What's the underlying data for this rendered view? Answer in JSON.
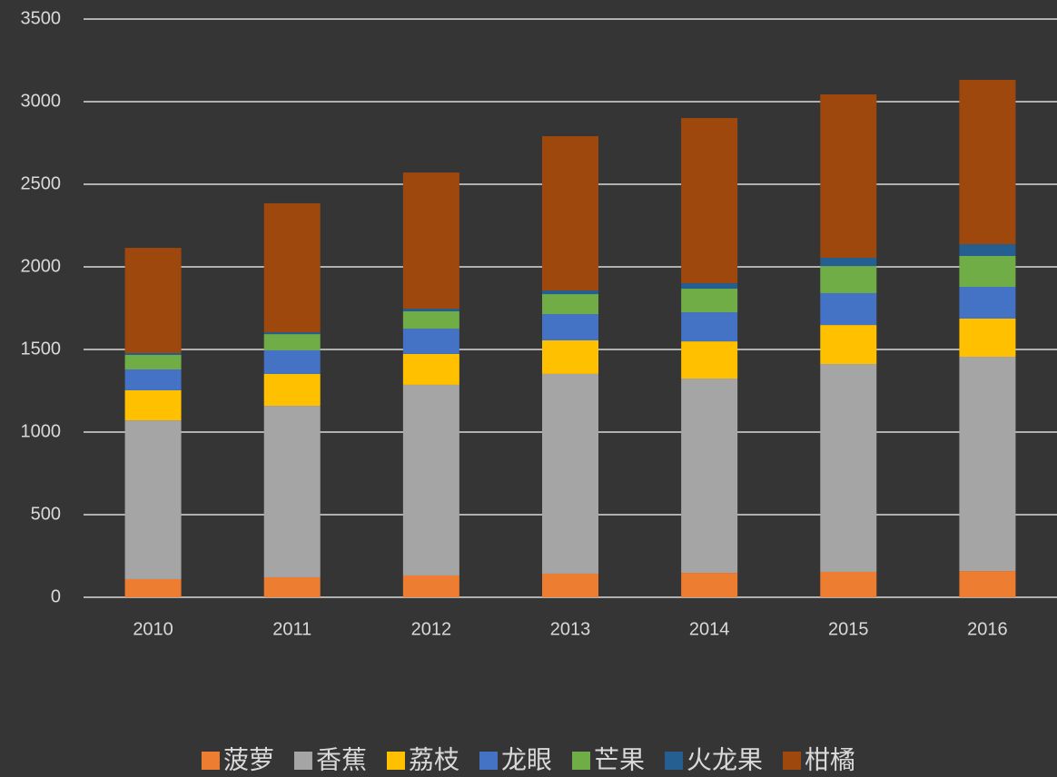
{
  "chart_data": {
    "type": "stacked_bar",
    "categories": [
      "2010",
      "2011",
      "2012",
      "2013",
      "2014",
      "2015",
      "2016"
    ],
    "series": [
      {
        "name": "菠萝",
        "color": "#ed7d31",
        "values": [
          110,
          121,
          132,
          143,
          148,
          154,
          159
        ]
      },
      {
        "name": "香蕉",
        "color": "#a5a5a5",
        "values": [
          961,
          1038,
          1154,
          1209,
          1176,
          1258,
          1297
        ]
      },
      {
        "name": "荔枝",
        "color": "#ffc000",
        "values": [
          182,
          193,
          187,
          203,
          225,
          236,
          231
        ]
      },
      {
        "name": "龙眼",
        "color": "#4472c4",
        "values": [
          126,
          143,
          153,
          159,
          176,
          193,
          192
        ]
      },
      {
        "name": "芒果",
        "color": "#70ad47",
        "values": [
          88,
          98,
          105,
          121,
          143,
          164,
          187
        ]
      },
      {
        "name": "火龙果",
        "color": "#255e91",
        "values": [
          11,
          11,
          16,
          22,
          33,
          50,
          71
        ]
      },
      {
        "name": "柑橘",
        "color": "#9e480e",
        "values": [
          637,
          781,
          824,
          934,
          1000,
          989,
          995
        ]
      }
    ],
    "ylim": [
      0,
      3500
    ],
    "yticks": [
      0,
      500,
      1000,
      1500,
      2000,
      2500,
      3000,
      3500
    ],
    "grid": true,
    "legend": "bottom"
  }
}
